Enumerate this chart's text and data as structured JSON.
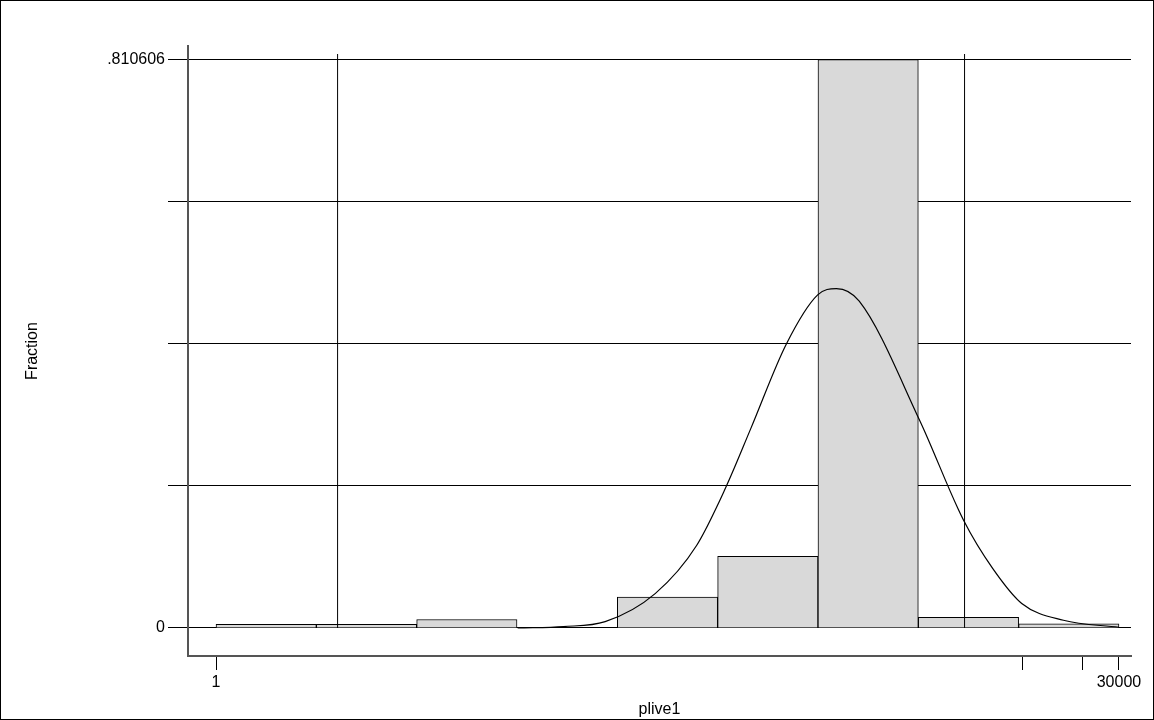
{
  "chart_data": {
    "type": "histogram",
    "xlabel": "plive1",
    "ylabel": "Fraction",
    "bins": [
      1,
      3334.2,
      6667.4,
      10000.7,
      13333.9,
      16667.1,
      20000.3,
      23333.6,
      26666.8,
      30000
    ],
    "values": [
      0.005,
      0.005,
      0.012,
      0,
      0.044,
      0.102,
      0.810606,
      0.015,
      0.006
    ],
    "color": "#d9d9d9",
    "series": [
      {
        "type": "line",
        "color": "#000000",
        "x": [
          10023,
          11545,
          12930,
          14591,
          15973,
          16943,
          17774,
          18950,
          19990,
          20611,
          21371,
          23380,
          24833,
          25803,
          26770,
          28155,
          30000
        ],
        "values": [
          0,
          0.002,
          0.009,
          0.049,
          0.118,
          0.201,
          0.285,
          0.405,
          0.475,
          0.484,
          0.466,
          0.296,
          0.154,
          0.085,
          0.035,
          0.011,
          0.001
        ]
      }
    ],
    "marker": "none",
    "xlim": [
      -930,
      30400
    ],
    "xticks": [
      1,
      {
        "value": 26800,
        "label": null
      },
      {
        "value": 28800,
        "label": null
      },
      30000
    ],
    "ylim": [
      -0.04,
      0.83
    ],
    "yticks": [
      0,
      {
        "value": 0.2026515,
        "label": null
      },
      {
        "value": 0.405303,
        "label": null
      },
      {
        "value": 0.6079545,
        "label": null
      },
      {
        "value": 0.810606,
        "label": ".810606"
      }
    ],
    "grid": "y",
    "ref_lines": [
      {
        "axis": "x",
        "value": 4040,
        "label": null
      },
      {
        "axis": "x",
        "value": 24870,
        "label": null
      }
    ]
  }
}
